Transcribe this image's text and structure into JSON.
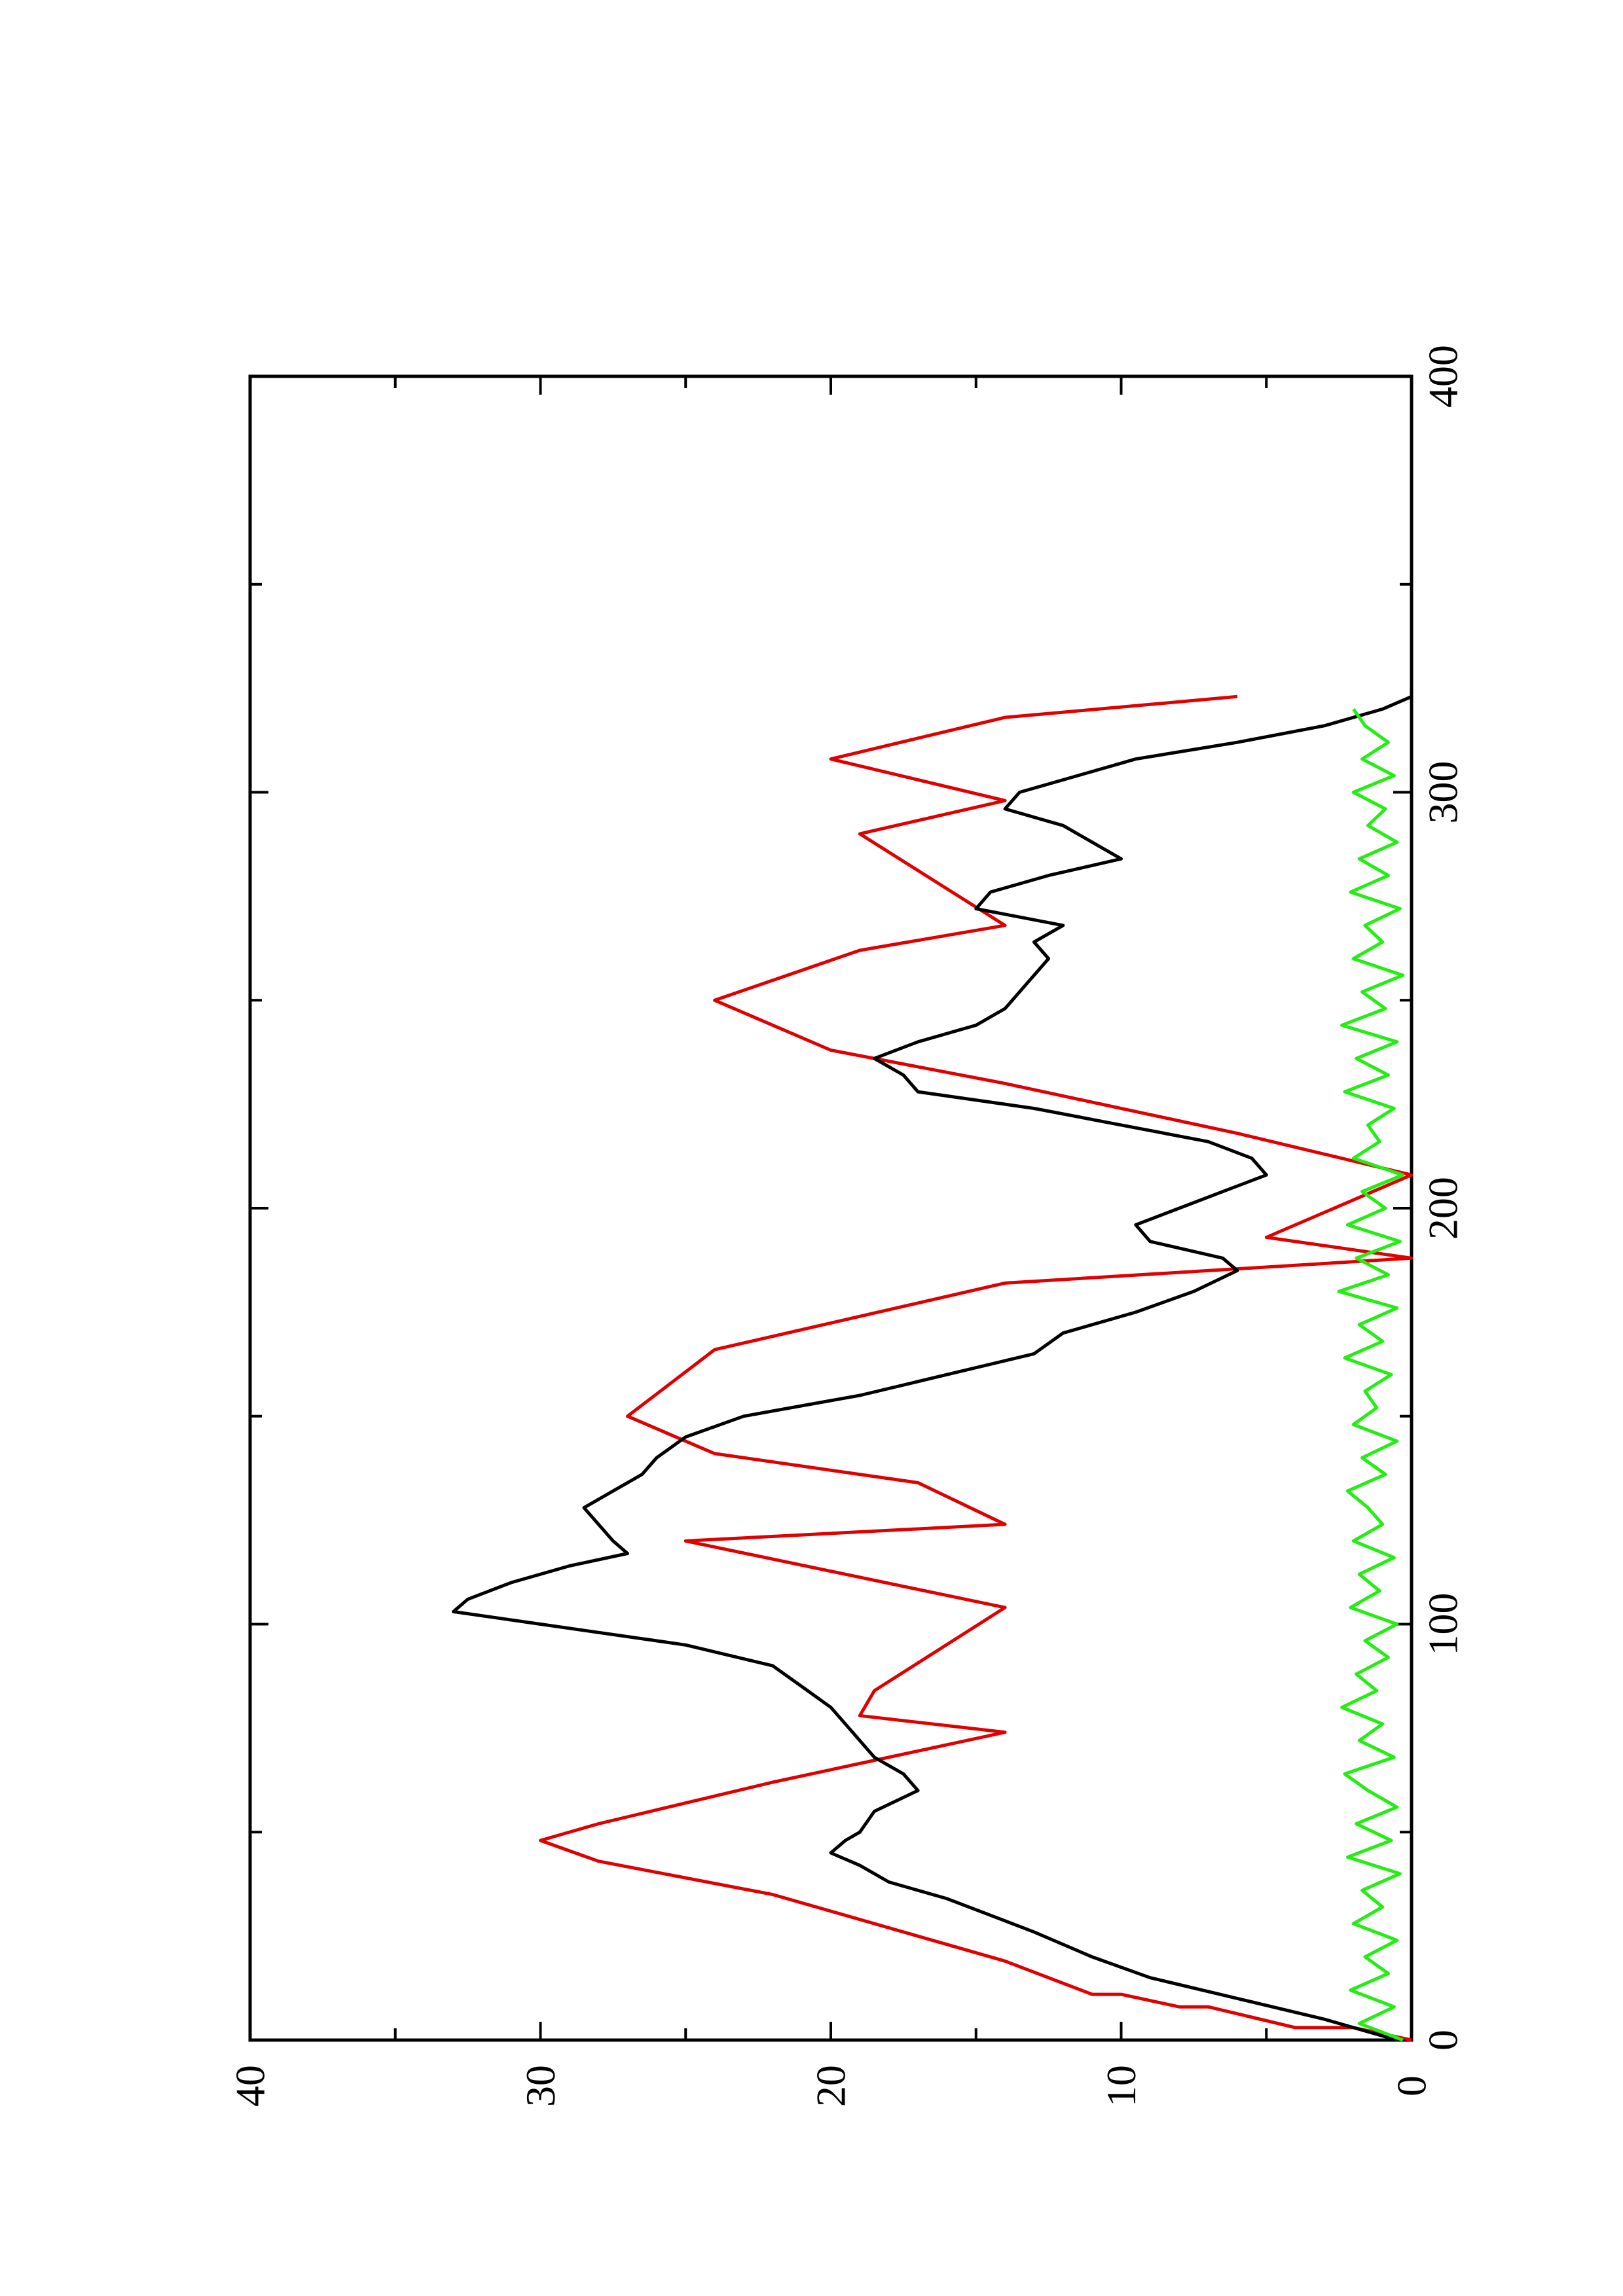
{
  "chart_data": {
    "type": "line",
    "rotated": "90deg-clockwise-landscape",
    "title": "",
    "xlabel": "",
    "ylabel": "",
    "xlim": [
      0,
      400
    ],
    "ylim": [
      0,
      40
    ],
    "grid": false,
    "x_ticks": [
      0,
      100,
      200,
      300,
      400
    ],
    "y_ticks": [
      0,
      10,
      20,
      30,
      40
    ],
    "series": [
      {
        "color": "#e00000",
        "x": [
          0,
          3,
          3,
          8,
          8,
          11,
          11,
          19,
          19,
          35,
          35,
          43,
          43,
          48,
          48,
          52,
          52,
          62,
          62,
          74,
          74,
          78,
          78,
          84,
          84,
          104,
          104,
          120,
          120,
          124,
          124,
          134,
          134,
          141,
          141,
          150,
          150,
          166,
          166,
          182,
          182,
          188,
          188,
          193,
          193,
          208,
          208,
          218,
          218,
          230,
          230,
          238,
          238,
          250,
          250,
          262,
          262,
          268,
          268,
          290,
          290,
          298,
          298,
          308,
          308,
          318,
          318,
          323
        ],
        "y": [
          0,
          2,
          4,
          7,
          8,
          10,
          11,
          14,
          14,
          22,
          22,
          28,
          28,
          30,
          30,
          28,
          28,
          22,
          22,
          14,
          14,
          19,
          19,
          18.5,
          18.5,
          14,
          14,
          25,
          25,
          14,
          14,
          17,
          17,
          24,
          24,
          27,
          27,
          24,
          24,
          14,
          14,
          0,
          0,
          5,
          5,
          0,
          0,
          6,
          6,
          14,
          14,
          20,
          20,
          24,
          24,
          19,
          19,
          14,
          14,
          19,
          19,
          14,
          14,
          20,
          20,
          14,
          14,
          6
        ]
      },
      {
        "color": "#000000",
        "x": [
          0,
          5,
          10,
          15,
          20,
          26,
          30,
          34,
          38,
          42,
          45,
          48,
          50,
          55,
          60,
          64,
          68,
          72,
          76,
          80,
          85,
          90,
          95,
          100,
          103,
          106,
          110,
          114,
          117,
          120,
          124,
          128,
          132,
          136,
          140,
          145,
          150,
          155,
          160,
          165,
          170,
          175,
          180,
          185,
          188,
          192,
          196,
          200,
          204,
          208,
          212,
          216,
          220,
          224,
          228,
          232,
          236,
          240,
          244,
          248,
          252,
          256,
          260,
          264,
          268,
          272,
          276,
          280,
          284,
          288,
          292,
          296,
          300,
          304,
          308,
          312,
          316,
          320,
          323
        ],
        "y": [
          0.5,
          3,
          6,
          9,
          11,
          13,
          14.5,
          16,
          18,
          19,
          20,
          19.5,
          19,
          18.5,
          17,
          17.5,
          18.5,
          19,
          19.5,
          20,
          21,
          22,
          25,
          30,
          33,
          32.5,
          31,
          29,
          27,
          27.5,
          28,
          28.5,
          27.5,
          26.5,
          26,
          25,
          23,
          19,
          16,
          13,
          12,
          9.5,
          7.5,
          6,
          6.5,
          9,
          9.5,
          8,
          6.5,
          5,
          5.5,
          7,
          10,
          13,
          17,
          17.5,
          18.5,
          17,
          15,
          14,
          13.5,
          13,
          12.5,
          13,
          12,
          15,
          14.5,
          12.5,
          10,
          11,
          12,
          14,
          13.5,
          11.5,
          9.5,
          6,
          3,
          1,
          0
        ]
      },
      {
        "color": "#22ee11",
        "x": [
          0,
          4,
          8,
          12,
          16,
          20,
          24,
          28,
          32,
          36,
          40,
          44,
          48,
          52,
          56,
          60,
          64,
          68,
          72,
          76,
          80,
          84,
          88,
          92,
          96,
          100,
          104,
          108,
          112,
          116,
          120,
          124,
          128,
          132,
          136,
          140,
          144,
          148,
          152,
          156,
          160,
          164,
          168,
          172,
          176,
          180,
          184,
          188,
          192,
          196,
          200,
          204,
          208,
          212,
          216,
          220,
          224,
          228,
          232,
          236,
          240,
          244,
          248,
          252,
          256,
          260,
          264,
          268,
          272,
          276,
          280,
          284,
          288,
          292,
          296,
          300,
          304,
          308,
          312,
          316,
          320
        ],
        "y": [
          0.3,
          1.8,
          0.6,
          2.1,
          0.8,
          1.6,
          0.5,
          2.0,
          1.0,
          1.7,
          0.4,
          2.2,
          0.7,
          1.9,
          0.5,
          1.5,
          2.3,
          0.6,
          1.8,
          1.0,
          2.4,
          1.2,
          1.9,
          0.8,
          1.6,
          0.5,
          2.1,
          1.1,
          1.8,
          0.6,
          2.0,
          1.0,
          1.5,
          2.2,
          0.9,
          1.7,
          0.5,
          2.0,
          1.2,
          1.6,
          0.7,
          2.3,
          1.0,
          1.8,
          0.5,
          2.5,
          0.8,
          1.9,
          0.4,
          2.2,
          0.9,
          1.7,
          0.3,
          2.0,
          1.1,
          1.5,
          0.6,
          2.3,
          0.8,
          1.9,
          0.5,
          2.4,
          0.9,
          1.7,
          0.3,
          2.0,
          1.0,
          1.6,
          0.4,
          2.1,
          0.8,
          1.8,
          0.5,
          1.5,
          0.9,
          2.0,
          0.6,
          1.7,
          0.8,
          1.6,
          2.0
        ]
      }
    ]
  }
}
